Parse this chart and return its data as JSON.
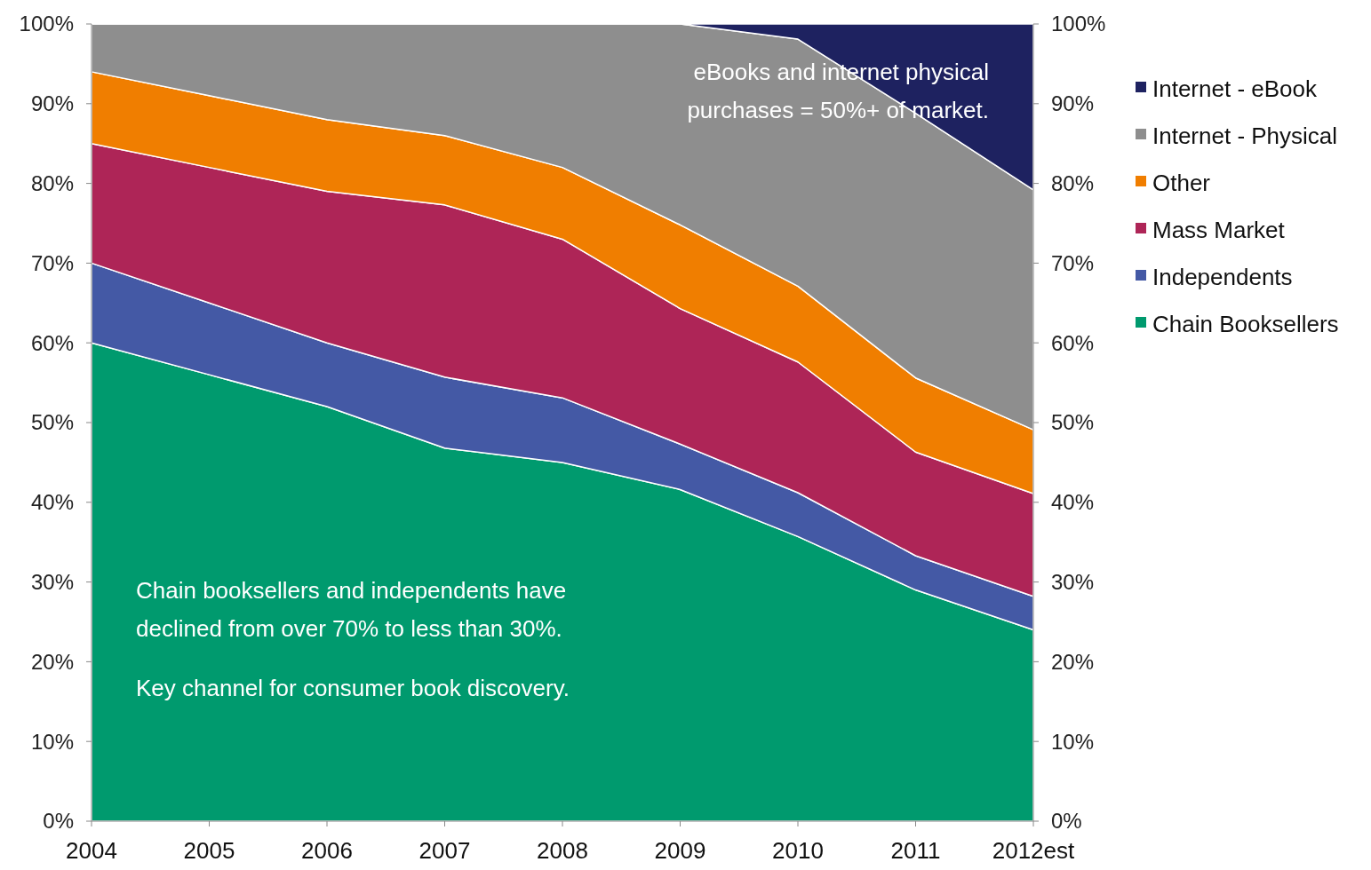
{
  "chart_data": {
    "type": "area",
    "stacked": true,
    "categories": [
      "2004",
      "2005",
      "2006",
      "2007",
      "2008",
      "2009",
      "2010",
      "2011",
      "2012est"
    ],
    "series": [
      {
        "name": "Chain Booksellers",
        "color": "#009a6e",
        "values": [
          60,
          56,
          52,
          46.8,
          45,
          41.6,
          35.7,
          29,
          24
        ]
      },
      {
        "name": "Independents",
        "color": "#4459a5",
        "values": [
          10,
          9,
          8,
          8.9,
          8.1,
          5.7,
          5.5,
          4.3,
          4.2
        ]
      },
      {
        "name": "Mass Market",
        "color": "#ae2557",
        "values": [
          15,
          17,
          19,
          21.6,
          19.9,
          17,
          16.4,
          13,
          12.9
        ]
      },
      {
        "name": "Other",
        "color": "#f07e00",
        "values": [
          9,
          9,
          9,
          8.7,
          9,
          10.5,
          9.5,
          9.3,
          8
        ]
      },
      {
        "name": "Internet - Physical",
        "color": "#8e8e8e",
        "values": [
          6,
          9,
          12,
          14,
          18,
          25.2,
          31,
          33.2,
          30.1
        ]
      },
      {
        "name": "Internet - eBook",
        "color": "#1e2260",
        "values": [
          0,
          0,
          0,
          0,
          0,
          0,
          1.9,
          11.2,
          20.8
        ]
      }
    ],
    "ylim": [
      0,
      100
    ],
    "yticks": [
      {
        "value": 0,
        "label": "0%"
      },
      {
        "value": 10,
        "label": "10%"
      },
      {
        "value": 20,
        "label": "20%"
      },
      {
        "value": 30,
        "label": "30%"
      },
      {
        "value": 40,
        "label": "40%"
      },
      {
        "value": 50,
        "label": "50%"
      },
      {
        "value": 60,
        "label": "60%"
      },
      {
        "value": 70,
        "label": "70%"
      },
      {
        "value": 80,
        "label": "80%"
      },
      {
        "value": 90,
        "label": "90%"
      },
      {
        "value": 100,
        "label": "100%"
      }
    ],
    "y2lim": [
      0,
      100
    ],
    "y2ticks": [
      {
        "value": 0,
        "label": "0%"
      },
      {
        "value": 10,
        "label": "10%"
      },
      {
        "value": 20,
        "label": "20%"
      },
      {
        "value": 30,
        "label": "30%"
      },
      {
        "value": 40,
        "label": "40%"
      },
      {
        "value": 50,
        "label": "50%"
      },
      {
        "value": 60,
        "label": "60%"
      },
      {
        "value": 70,
        "label": "70%"
      },
      {
        "value": 80,
        "label": "80%"
      },
      {
        "value": 90,
        "label": "90%"
      },
      {
        "value": 100,
        "label": "100%"
      }
    ],
    "legend": "right",
    "annotations": [
      "eBooks and internet physical purchases = 50%+ of market.",
      "Chain booksellers and independents have declined from over 70% to less than 30%.",
      "Key channel for consumer book discovery."
    ]
  }
}
